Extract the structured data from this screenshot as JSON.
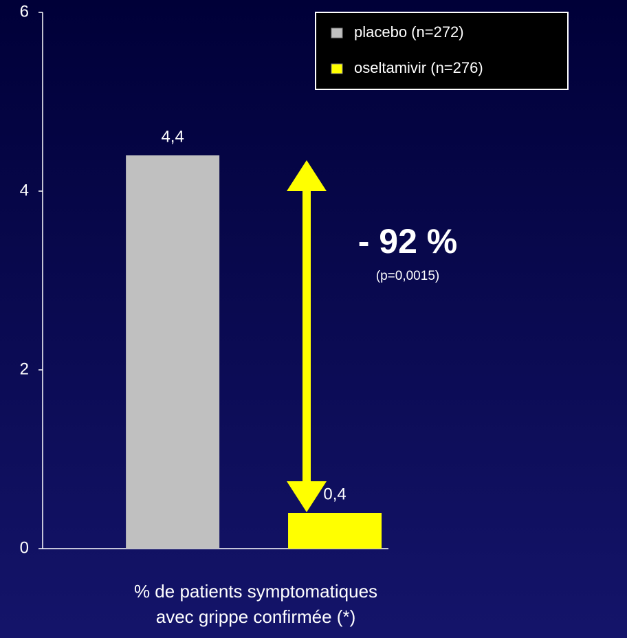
{
  "chart_data": {
    "type": "bar",
    "categories": [
      null
    ],
    "series": [
      {
        "name": "placebo (n=272)",
        "color": "#c0c0c0",
        "values": [
          4.4
        ],
        "value_labels": [
          "4,4"
        ]
      },
      {
        "name": "oseltamivir (n=276)",
        "color": "#ffff00",
        "values": [
          0.4
        ],
        "value_labels": [
          "0,4"
        ]
      }
    ],
    "xlabel": [
      "% de patients symptomatiques",
      "avec grippe confirmée (*)"
    ],
    "annotations": [
      "- 92 %",
      "(p=0,0015)"
    ],
    "ylim": [
      0,
      6
    ],
    "yticks": [
      0,
      2,
      4,
      6
    ],
    "legend": "upper right"
  }
}
